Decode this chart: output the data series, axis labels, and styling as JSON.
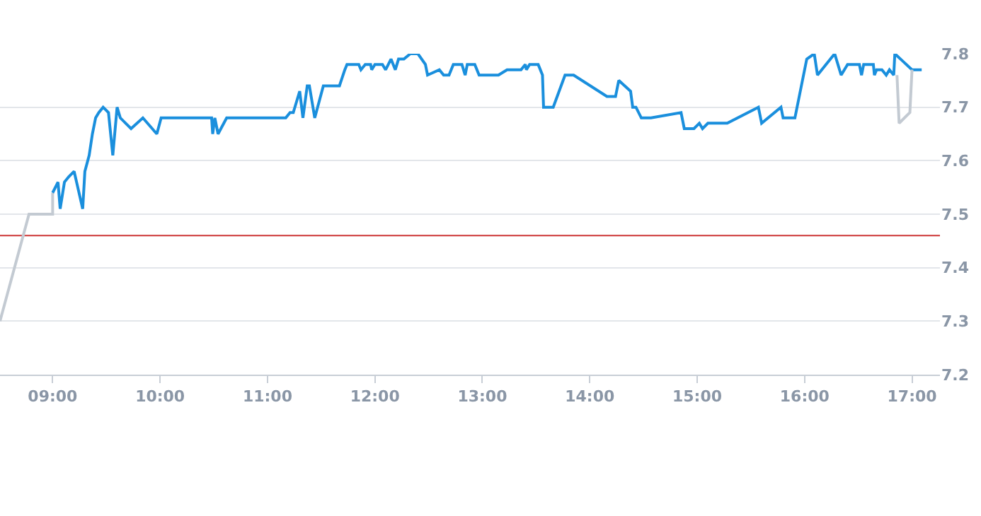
{
  "chart_data": {
    "type": "line",
    "xlim": [
      8.51,
      17.26
    ],
    "ylim": [
      7.2,
      7.8
    ],
    "xticks": [
      {
        "value": 9,
        "label": "09:00"
      },
      {
        "value": 10,
        "label": "10:00"
      },
      {
        "value": 11,
        "label": "11:00"
      },
      {
        "value": 12,
        "label": "12:00"
      },
      {
        "value": 13,
        "label": "13:00"
      },
      {
        "value": 14,
        "label": "14:00"
      },
      {
        "value": 15,
        "label": "15:00"
      },
      {
        "value": 16,
        "label": "16:00"
      },
      {
        "value": 17,
        "label": "17:00"
      }
    ],
    "yticks": [
      7.2,
      7.3,
      7.4,
      7.5,
      7.6,
      7.7,
      7.8
    ],
    "grid": "y",
    "marker": "none",
    "line_style": "solid",
    "ref_lines": [
      {
        "axis": "y",
        "value": 7.46,
        "color": "#cc3333"
      }
    ],
    "series": [
      {
        "color": "#c3cad2",
        "x": [
          8.51,
          8.78,
          9.0,
          9.0
        ],
        "values": [
          7.3,
          7.5,
          7.5,
          7.54
        ]
      },
      {
        "color": "#1a8fdd",
        "x": [
          9.0,
          9.05,
          9.07,
          9.11,
          9.15,
          9.2,
          9.28,
          9.3,
          9.34,
          9.37,
          9.4,
          9.43,
          9.47,
          9.52,
          9.56,
          9.6,
          9.63,
          9.73,
          9.84,
          9.97,
          10.01,
          10.48,
          10.49,
          10.51,
          10.54,
          10.62,
          11.17,
          11.21,
          11.24,
          11.3,
          11.33,
          11.37,
          11.39,
          11.44,
          11.52,
          11.67,
          11.72,
          11.74,
          11.85,
          11.87,
          11.91,
          11.96,
          11.97,
          12.0,
          12.07,
          12.1,
          12.15,
          12.19,
          12.22,
          12.27,
          12.33,
          12.4,
          12.47,
          12.49,
          12.6,
          12.64,
          12.69,
          12.73,
          12.81,
          12.84,
          12.86,
          12.93,
          12.97,
          13.15,
          13.23,
          13.36,
          13.4,
          13.41,
          13.44,
          13.52,
          13.56,
          13.57,
          13.66,
          13.77,
          13.85,
          14.16,
          14.24,
          14.27,
          14.38,
          14.4,
          14.43,
          14.48,
          14.57,
          14.85,
          14.88,
          14.97,
          15.02,
          15.05,
          15.1,
          15.28,
          15.57,
          15.6,
          15.78,
          15.8,
          15.91,
          16.02,
          16.09,
          16.12,
          16.28,
          16.34,
          16.4,
          16.51,
          16.53,
          16.55,
          16.64,
          16.65,
          16.67,
          16.72,
          16.76,
          16.79,
          16.83,
          16.84,
          17.0,
          17.04,
          17.09
        ],
        "values": [
          7.54,
          7.56,
          7.51,
          7.56,
          7.57,
          7.58,
          7.51,
          7.58,
          7.61,
          7.65,
          7.68,
          7.69,
          7.7,
          7.69,
          7.61,
          7.7,
          7.68,
          7.66,
          7.68,
          7.65,
          7.68,
          7.68,
          7.65,
          7.68,
          7.65,
          7.68,
          7.68,
          7.69,
          7.69,
          7.73,
          7.68,
          7.74,
          7.74,
          7.68,
          7.74,
          7.74,
          7.77,
          7.78,
          7.78,
          7.77,
          7.78,
          7.78,
          7.77,
          7.78,
          7.78,
          7.77,
          7.79,
          7.77,
          7.79,
          7.79,
          7.8,
          7.8,
          7.78,
          7.76,
          7.77,
          7.76,
          7.76,
          7.78,
          7.78,
          7.76,
          7.78,
          7.78,
          7.76,
          7.76,
          7.77,
          7.77,
          7.78,
          7.77,
          7.78,
          7.78,
          7.76,
          7.7,
          7.7,
          7.76,
          7.76,
          7.72,
          7.72,
          7.75,
          7.73,
          7.7,
          7.7,
          7.68,
          7.68,
          7.69,
          7.66,
          7.66,
          7.67,
          7.66,
          7.67,
          7.67,
          7.7,
          7.67,
          7.7,
          7.68,
          7.68,
          7.79,
          7.8,
          7.76,
          7.8,
          7.76,
          7.78,
          7.78,
          7.76,
          7.78,
          7.78,
          7.76,
          7.77,
          7.77,
          7.76,
          7.77,
          7.76,
          7.8,
          7.77,
          7.77,
          7.77
        ]
      },
      {
        "color": "#c3cad2",
        "x": [
          16.86,
          16.88,
          16.98,
          17.0
        ],
        "values": [
          7.76,
          7.67,
          7.69,
          7.77
        ]
      }
    ]
  }
}
